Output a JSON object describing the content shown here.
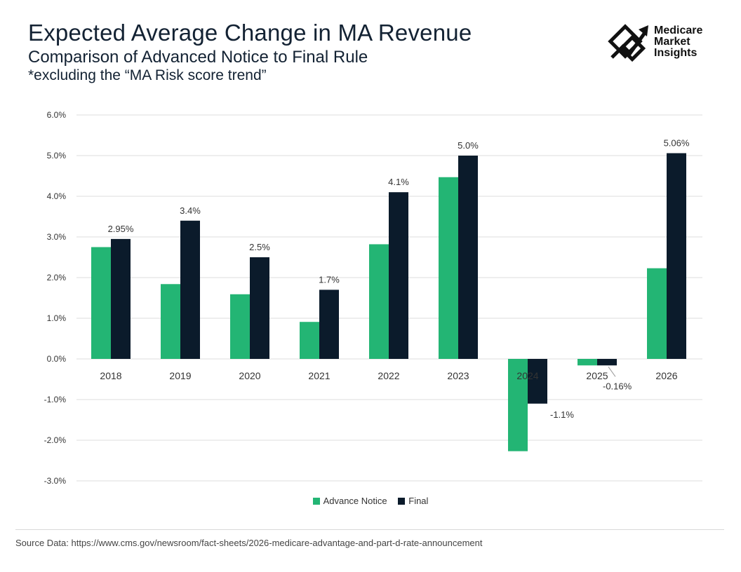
{
  "header": {
    "title": "Expected Average Change in MA Revenue",
    "subtitle": "Comparison of Advanced Notice to Final Rule",
    "note": "*excluding the “MA Risk score trend”"
  },
  "logo": {
    "icon": "chart-arrow-logo-icon",
    "lines": [
      "Medicare",
      "Market",
      "Insights"
    ]
  },
  "footer": {
    "source": "Source Data: https://www.cms.gov/newsroom/fact-sheets/2026-medicare-advantage-and-part-d-rate-announcement"
  },
  "colors": {
    "advance": "#23b574",
    "final": "#0b1b2b",
    "grid": "#dcdcdc"
  },
  "chart_data": {
    "type": "bar",
    "title": "Expected Average Change in MA Revenue",
    "categories": [
      "2018",
      "2019",
      "2020",
      "2021",
      "2022",
      "2023",
      "2024",
      "2025",
      "2026"
    ],
    "series": [
      {
        "name": "Advance Notice",
        "values": [
          2.75,
          1.84,
          1.59,
          0.91,
          2.82,
          4.47,
          -2.27,
          -0.16,
          2.23
        ]
      },
      {
        "name": "Final",
        "values": [
          2.95,
          3.4,
          2.5,
          1.7,
          4.1,
          5.0,
          -1.1,
          -0.16,
          5.06
        ]
      }
    ],
    "data_labels": [
      "2.95%",
      "3.4%",
      "2.5%",
      "1.7%",
      "4.1%",
      "5.0%",
      "-1.1%",
      "-0.16%",
      "5.06%"
    ],
    "ylim": [
      -3,
      6
    ],
    "yticks": [
      "6.0%",
      "5.0%",
      "4.0%",
      "3.0%",
      "2.0%",
      "1.0%",
      "0.0%",
      "-1.0%",
      "-2.0%",
      "-3.0%"
    ],
    "xlabel": "",
    "ylabel": "",
    "grid": true,
    "legend": "bottom-center"
  }
}
